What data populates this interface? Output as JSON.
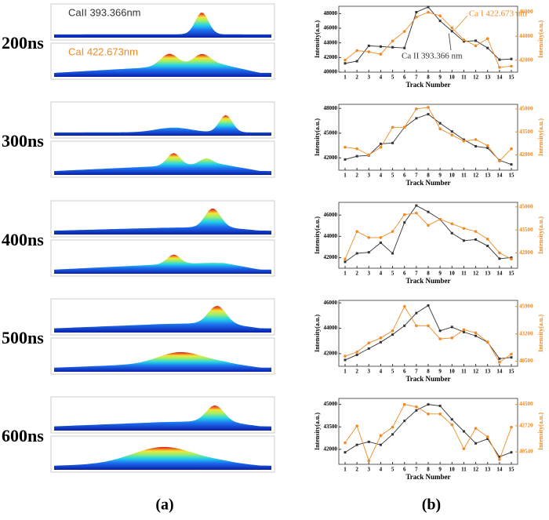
{
  "delay_labels": [
    "200ns",
    "300ns",
    "400ns",
    "500ns",
    "600ns"
  ],
  "image_labels": [
    "CaII 393.366nm",
    "CaI 422.673nm"
  ],
  "panel_labels": [
    "(a)",
    "(b)"
  ],
  "chart_data": [
    {
      "type": "line",
      "x_label": "Track Number",
      "y_label": "Intensity(a.u.)",
      "y2_label": "Intensity(a.u.)",
      "categories": [
        "1",
        "2",
        "3",
        "4",
        "5",
        "6",
        "7",
        "8",
        "9",
        "10",
        "11",
        "12",
        "13",
        "14",
        "15"
      ],
      "ylim": [
        40000,
        49000
      ],
      "yticks": [
        40000,
        42000,
        44000,
        46000,
        48000
      ],
      "y2lim": [
        41000,
        46500
      ],
      "y2ticks": [
        42000,
        44000,
        46000
      ],
      "series": [
        {
          "name": "Ca II 393.366 nm",
          "color": "#333333",
          "values": [
            41200,
            41500,
            43600,
            43500,
            43400,
            43300,
            48200,
            48900,
            47000,
            45600,
            44200,
            44300,
            43300,
            41700,
            41800
          ]
        },
        {
          "name": "Ca I 422.673 nm",
          "color": "#f08a24",
          "axis": "y2",
          "values": [
            42000,
            42800,
            42700,
            42500,
            43600,
            44400,
            45600,
            46000,
            45700,
            44700,
            43700,
            43200,
            43800,
            41400,
            41500
          ]
        }
      ]
    },
    {
      "type": "line",
      "x_label": "Track Number",
      "y_label": "Intensity(a.u.)",
      "y2_label": "Intensity(a.u.)",
      "categories": [
        "1",
        "2",
        "3",
        "4",
        "5",
        "6",
        "7",
        "8",
        "9",
        "10",
        "11",
        "12",
        "13",
        "14",
        "15"
      ],
      "ylim": [
        40500,
        48500
      ],
      "yticks": [
        42000,
        45000,
        48000
      ],
      "y2lim": [
        41000,
        45300
      ],
      "y2ticks": [
        42000,
        43500,
        45000
      ],
      "series": [
        {
          "color": "#333333",
          "values": [
            41800,
            42200,
            42300,
            43700,
            43800,
            45700,
            46800,
            47300,
            46200,
            45200,
            44200,
            43400,
            43200,
            41700,
            41200
          ]
        },
        {
          "color": "#f08a24",
          "axis": "y2",
          "values": [
            42500,
            42400,
            42000,
            42500,
            43800,
            43800,
            45000,
            45100,
            43700,
            43300,
            42900,
            43000,
            42600,
            41600,
            42400
          ]
        }
      ]
    },
    {
      "type": "line",
      "x_label": "Track Number",
      "y_label": "Intensity(a.u.)",
      "y2_label": "Intensity(a.u.)",
      "categories": [
        "1",
        "2",
        "3",
        "4",
        "5",
        "6",
        "7",
        "8",
        "9",
        "10",
        "11",
        "12",
        "13",
        "14",
        "15"
      ],
      "ylim": [
        41000,
        47200
      ],
      "yticks": [
        42000,
        44000,
        46000
      ],
      "y2lim": [
        41000,
        45300
      ],
      "y2ticks": [
        42000,
        43500,
        45000
      ],
      "series": [
        {
          "color": "#333333",
          "values": [
            41600,
            42400,
            42500,
            43400,
            42400,
            45300,
            46900,
            46300,
            45600,
            44300,
            43600,
            43700,
            43100,
            41900,
            42000
          ]
        },
        {
          "color": "#f08a24",
          "axis": "y2",
          "values": [
            41600,
            43400,
            43000,
            43000,
            43400,
            44500,
            44600,
            43800,
            44200,
            43900,
            43600,
            43400,
            42900,
            42000,
            41600
          ]
        }
      ]
    },
    {
      "type": "line",
      "x_label": "Track Number",
      "y_label": "Intensity(a.u.)",
      "y2_label": "Intensity(a.u.)",
      "categories": [
        "1",
        "2",
        "3",
        "4",
        "5",
        "6",
        "7",
        "8",
        "9",
        "10",
        "11",
        "12",
        "13",
        "14",
        "15"
      ],
      "ylim": [
        41000,
        46200
      ],
      "yticks": [
        42000,
        44000,
        46000
      ],
      "y2lim": [
        40000,
        46500
      ],
      "y2ticks": [
        40500,
        43200,
        45900
      ],
      "series": [
        {
          "color": "#333333",
          "values": [
            41500,
            41900,
            42400,
            42900,
            43500,
            44200,
            45200,
            45800,
            43800,
            44100,
            43700,
            43400,
            42900,
            41600,
            41700
          ]
        },
        {
          "color": "#f08a24",
          "axis": "y2",
          "values": [
            41000,
            41400,
            42300,
            42800,
            43500,
            45900,
            44000,
            44000,
            42700,
            42800,
            43600,
            43300,
            42400,
            40400,
            41200
          ]
        }
      ]
    },
    {
      "type": "line",
      "x_label": "Track Number",
      "y_label": "Intensity(a.u.)",
      "y2_label": "Intensity(a.u.)",
      "categories": [
        "1",
        "2",
        "3",
        "4",
        "5",
        "6",
        "7",
        "8",
        "9",
        "10",
        "11",
        "12",
        "13",
        "14",
        "15"
      ],
      "ylim": [
        41000,
        45400
      ],
      "yticks": [
        42000,
        43500,
        45000
      ],
      "y2lim": [
        39500,
        45000
      ],
      "y2ticks": [
        40540,
        42720,
        44500
      ],
      "series": [
        {
          "color": "#333333",
          "values": [
            41800,
            42300,
            42500,
            42300,
            43000,
            43900,
            44600,
            45000,
            44900,
            44000,
            43200,
            42400,
            42700,
            41500,
            41800
          ]
        },
        {
          "color": "#f08a24",
          "axis": "y2",
          "values": [
            41300,
            42700,
            39800,
            41900,
            42600,
            44500,
            44300,
            43700,
            43700,
            42800,
            40800,
            42500,
            41800,
            39900,
            42600
          ]
        }
      ]
    }
  ]
}
